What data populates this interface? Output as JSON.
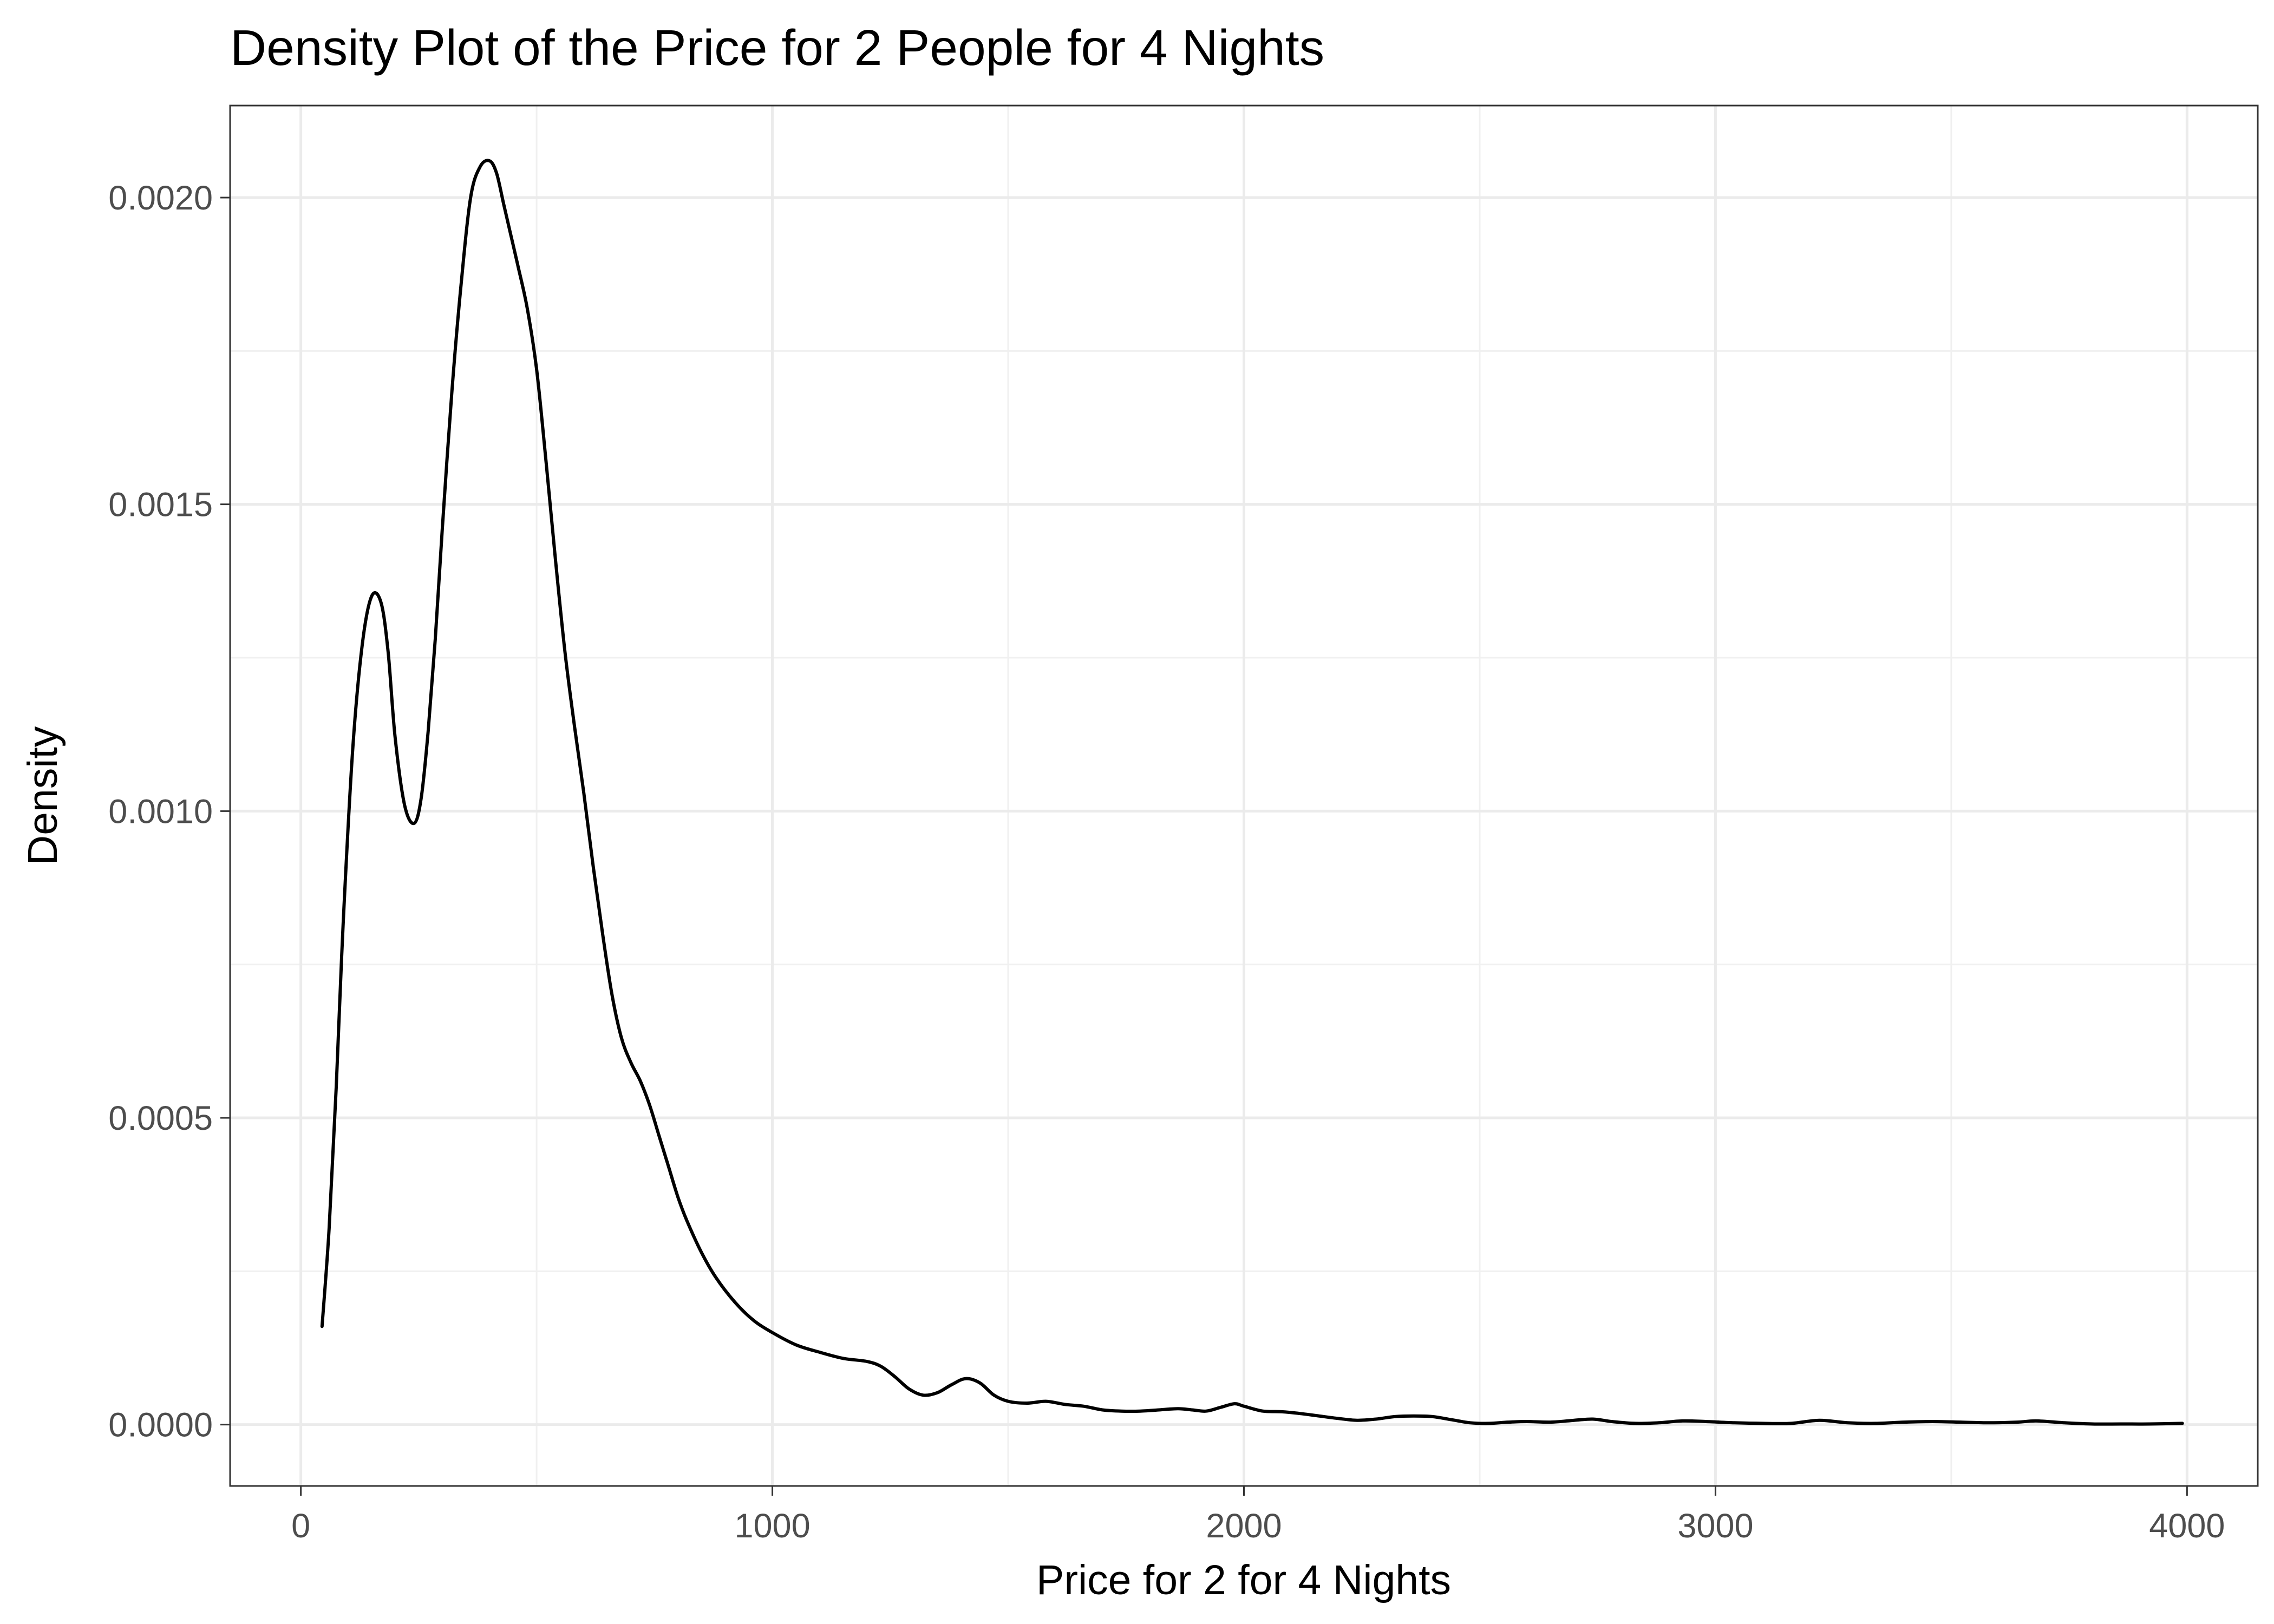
{
  "chart_data": {
    "type": "line",
    "title": "Density Plot of the Price for 2 People for  4 Nights",
    "xlabel": "Price for 2 for 4 Nights",
    "ylabel": "Density",
    "xlim": [
      -150,
      4150
    ],
    "ylim": [
      -0.0001,
      0.00215
    ],
    "x_ticks": [
      0,
      1000,
      2000,
      3000,
      4000
    ],
    "x_tick_labels": [
      "0",
      "1000",
      "2000",
      "3000",
      "4000"
    ],
    "y_ticks": [
      0,
      0.0005,
      0.001,
      0.0015,
      0.002
    ],
    "y_tick_labels": [
      "0.0000",
      "0.0005",
      "0.0010",
      "0.0015",
      "0.0020"
    ],
    "grid": true,
    "line_color": "#000000",
    "series": [
      {
        "x": [
          45,
          60,
          75,
          90,
          110,
          130,
          150,
          170,
          185,
          200,
          220,
          240,
          255,
          270,
          285,
          300,
          320,
          340,
          360,
          380,
          400,
          415,
          430,
          445,
          460,
          480,
          500,
          520,
          540,
          560,
          580,
          600,
          620,
          640,
          660,
          680,
          700,
          720,
          740,
          760,
          780,
          800,
          820,
          850,
          880,
          920,
          960,
          1000,
          1050,
          1100,
          1150,
          1200,
          1230,
          1260,
          1290,
          1320,
          1350,
          1380,
          1410,
          1440,
          1470,
          1500,
          1540,
          1580,
          1620,
          1660,
          1700,
          1740,
          1780,
          1820,
          1860,
          1890,
          1920,
          1950,
          1980,
          2000,
          2040,
          2080,
          2120,
          2160,
          2200,
          2240,
          2280,
          2320,
          2360,
          2400,
          2440,
          2480,
          2520,
          2560,
          2600,
          2650,
          2700,
          2740,
          2780,
          2830,
          2880,
          2930,
          2980,
          3040,
          3100,
          3160,
          3220,
          3280,
          3340,
          3400,
          3460,
          3520,
          3580,
          3640,
          3680,
          3740,
          3800,
          3860,
          3920,
          3990
        ],
        "y": [
          0.00016,
          0.00032,
          0.00055,
          0.00082,
          0.0011,
          0.00127,
          0.00135,
          0.00134,
          0.00126,
          0.00112,
          0.00101,
          0.00098,
          0.00102,
          0.00113,
          0.00128,
          0.00146,
          0.00168,
          0.00186,
          0.002,
          0.00205,
          0.00206,
          0.00204,
          0.00199,
          0.00194,
          0.00189,
          0.00182,
          0.00172,
          0.00157,
          0.00141,
          0.00126,
          0.00114,
          0.00103,
          0.00091,
          0.0008,
          0.0007,
          0.00063,
          0.00059,
          0.00056,
          0.00052,
          0.00047,
          0.00042,
          0.00037,
          0.00033,
          0.00028,
          0.00024,
          0.0002,
          0.00017,
          0.00015,
          0.00013,
          0.000118,
          0.000108,
          0.000103,
          9.5e-05,
          7.8e-05,
          5.8e-05,
          4.8e-05,
          5.2e-05,
          6.5e-05,
          7.5e-05,
          6.8e-05,
          4.8e-05,
          3.8e-05,
          3.5e-05,
          3.8e-05,
          3.3e-05,
          3e-05,
          2.4e-05,
          2.2e-05,
          2.2e-05,
          2.4e-05,
          2.6e-05,
          2.4e-05,
          2.2e-05,
          2.8e-05,
          3.4e-05,
          3e-05,
          2.2e-05,
          2.1e-05,
          1.8e-05,
          1.4e-05,
          1e-05,
          7e-06,
          9e-06,
          1.3e-05,
          1.4e-05,
          1.3e-05,
          8e-06,
          3e-06,
          2e-06,
          4e-06,
          5e-06,
          4e-06,
          7e-06,
          9e-06,
          5e-06,
          2e-06,
          3e-06,
          6e-06,
          5e-06,
          3e-06,
          2e-06,
          2e-06,
          7e-06,
          3e-06,
          2e-06,
          4e-06,
          5e-06,
          4e-06,
          3e-06,
          4e-06,
          6e-06,
          3e-06,
          1e-06,
          1e-06,
          1e-06,
          2e-06
        ]
      }
    ]
  }
}
